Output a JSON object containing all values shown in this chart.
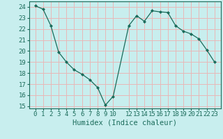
{
  "x": [
    0,
    1,
    2,
    3,
    4,
    5,
    6,
    7,
    8,
    9,
    10,
    12,
    13,
    14,
    15,
    16,
    17,
    18,
    19,
    20,
    21,
    22,
    23
  ],
  "y": [
    24.1,
    23.8,
    22.3,
    19.9,
    19.0,
    18.3,
    17.9,
    17.4,
    16.7,
    15.1,
    15.9,
    22.3,
    23.2,
    22.7,
    23.65,
    23.55,
    23.5,
    22.3,
    21.8,
    21.55,
    21.1,
    20.1,
    19.0
  ],
  "line_color": "#1a6b5a",
  "marker": "s",
  "marker_size": 2,
  "bg_color": "#c8eeee",
  "grid_color": "#e8b8b8",
  "xlabel": "Humidex (Indice chaleur)",
  "ylim": [
    14.8,
    24.5
  ],
  "yticks": [
    15,
    16,
    17,
    18,
    19,
    20,
    21,
    22,
    23,
    24
  ],
  "xticks": [
    0,
    1,
    2,
    3,
    4,
    5,
    6,
    7,
    8,
    9,
    10,
    12,
    13,
    14,
    15,
    16,
    17,
    18,
    19,
    20,
    21,
    22,
    23
  ],
  "tick_color": "#1a6b5a",
  "label_color": "#1a6b5a",
  "xlabel_fontsize": 7.5,
  "tick_fontsize": 6.5
}
